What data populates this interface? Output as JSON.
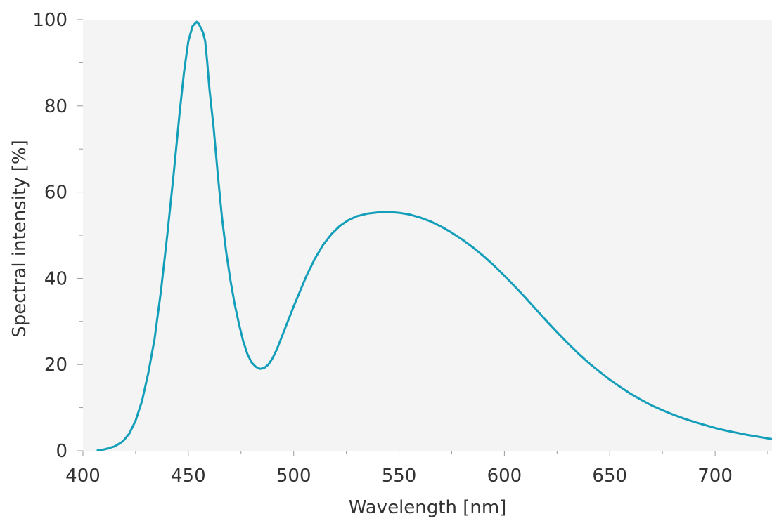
{
  "chart_data": {
    "type": "line",
    "xlabel": "Wavelength [nm]",
    "ylabel": "Spectral intensity [%]",
    "xlim": [
      400,
      727
    ],
    "ylim": [
      0,
      100
    ],
    "x_ticks": [
      "400",
      "450",
      "500",
      "550",
      "600",
      "650",
      "700"
    ],
    "y_ticks": [
      "0",
      "20",
      "40",
      "60",
      "80",
      "100"
    ],
    "grid": false,
    "plot_background": "#f4f4f4",
    "line_color": "#139eb9",
    "series": [
      {
        "x": [
          407,
          410,
          415,
          419,
          422,
          425,
          428,
          431,
          434,
          437,
          440,
          443,
          446,
          448,
          450,
          452,
          454,
          455,
          456,
          457,
          458,
          459,
          460,
          462,
          464,
          466,
          468,
          470,
          472,
          474,
          476,
          478,
          480,
          482,
          484,
          486,
          488,
          490,
          492,
          494,
          496,
          498,
          500,
          503,
          506,
          510,
          514,
          518,
          522,
          526,
          530,
          535,
          540,
          545,
          550,
          555,
          560,
          565,
          570,
          575,
          580,
          585,
          590,
          595,
          600,
          605,
          610,
          615,
          620,
          625,
          630,
          635,
          640,
          645,
          650,
          655,
          660,
          665,
          670,
          675,
          680,
          685,
          690,
          695,
          700,
          705,
          710,
          715,
          720,
          727
        ],
        "y": [
          0.1,
          0.3,
          1.0,
          2.2,
          4.0,
          7.0,
          11.5,
          18.0,
          26.0,
          37.0,
          50.0,
          64.0,
          79.0,
          88.0,
          95.0,
          98.5,
          99.5,
          99.0,
          98.0,
          97.0,
          95.0,
          90.0,
          84.0,
          75.0,
          64.0,
          54.0,
          46.0,
          39.5,
          34.0,
          29.5,
          25.5,
          22.5,
          20.5,
          19.5,
          19.0,
          19.2,
          20.0,
          21.5,
          23.5,
          26.0,
          28.5,
          31.0,
          33.5,
          37.0,
          40.5,
          44.5,
          47.8,
          50.3,
          52.2,
          53.5,
          54.4,
          55.0,
          55.3,
          55.4,
          55.2,
          54.8,
          54.1,
          53.2,
          52.0,
          50.6,
          49.0,
          47.2,
          45.2,
          43.0,
          40.6,
          38.1,
          35.5,
          32.8,
          30.1,
          27.5,
          25.0,
          22.6,
          20.4,
          18.4,
          16.5,
          14.8,
          13.2,
          11.8,
          10.5,
          9.4,
          8.4,
          7.5,
          6.7,
          6.0,
          5.3,
          4.7,
          4.2,
          3.7,
          3.3,
          2.7
        ]
      }
    ]
  }
}
